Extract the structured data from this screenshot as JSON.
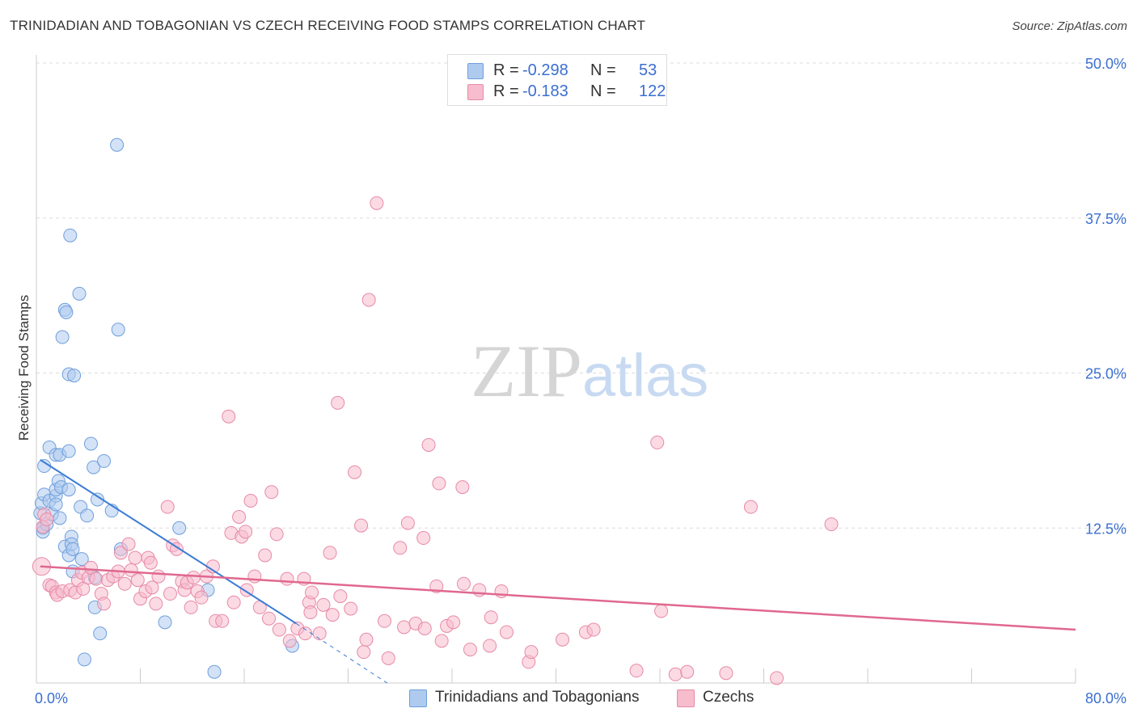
{
  "title": "TRINIDADIAN AND TOBAGONIAN VS CZECH RECEIVING FOOD STAMPS CORRELATION CHART",
  "source": "Source: ZipAtlas.com",
  "watermark": {
    "zip": "ZIP",
    "atlas": "atlas"
  },
  "legend": {
    "rows": [
      {
        "r_label": "R =",
        "r_value": "-0.298",
        "n_label": "N =",
        "n_value": "53"
      },
      {
        "r_label": "R =",
        "r_value": "-0.183",
        "n_label": "N =",
        "n_value": "122"
      }
    ]
  },
  "bottom_legend": [
    "Trinidadians and Tobagonians",
    "Czechs"
  ],
  "chart_data": {
    "type": "scatter",
    "title": "TRINIDADIAN AND TOBAGONIAN VS CZECH RECEIVING FOOD STAMPS CORRELATION CHART",
    "ylabel": "Receiving Food Stamps",
    "xlabel": "",
    "xlim": [
      0,
      80
    ],
    "ylim": [
      0,
      50
    ],
    "x_tick_labels": [
      "0.0%",
      "80.0%"
    ],
    "y_tick_labels": [
      "12.5%",
      "25.0%",
      "37.5%",
      "50.0%"
    ],
    "y_ticks": [
      12.5,
      25,
      37.5,
      50
    ],
    "grid": true,
    "legend_position": "top-center",
    "colors": {
      "series1_fill": "#aecbef",
      "series1_stroke": "#6f9fdc",
      "series1_line": "#3a7bd5",
      "series2_fill": "#f7bccd",
      "series2_stroke": "#e78aa7",
      "series2_line": "#e0688f",
      "tick_text": "#3b6fd0"
    },
    "series": [
      {
        "name": "Trinidadians and Tobagonians",
        "trend": {
          "x": [
            0.3,
            20
          ],
          "y": [
            18.0,
            4.8
          ],
          "dashed_to": [
            27,
            0
          ]
        },
        "points": [
          [
            0.3,
            13.7
          ],
          [
            0.4,
            14.5
          ],
          [
            0.5,
            12.5
          ],
          [
            0.5,
            12.2
          ],
          [
            0.6,
            15.2
          ],
          [
            0.6,
            17.5
          ],
          [
            0.8,
            12.8
          ],
          [
            1.0,
            19.0
          ],
          [
            1.0,
            14.7
          ],
          [
            1.2,
            13.6
          ],
          [
            1.5,
            15.1
          ],
          [
            1.5,
            15.6
          ],
          [
            1.5,
            14.4
          ],
          [
            1.5,
            18.4
          ],
          [
            1.7,
            16.3
          ],
          [
            1.8,
            18.4
          ],
          [
            1.8,
            13.3
          ],
          [
            1.9,
            15.8
          ],
          [
            2.0,
            27.9
          ],
          [
            2.2,
            11.0
          ],
          [
            2.2,
            30.1
          ],
          [
            2.3,
            29.9
          ],
          [
            2.5,
            15.6
          ],
          [
            2.5,
            18.7
          ],
          [
            2.5,
            24.9
          ],
          [
            2.5,
            10.3
          ],
          [
            2.6,
            36.1
          ],
          [
            2.7,
            11.8
          ],
          [
            2.7,
            11.2
          ],
          [
            2.8,
            10.8
          ],
          [
            2.8,
            9.0
          ],
          [
            2.9,
            24.8
          ],
          [
            3.3,
            31.4
          ],
          [
            3.4,
            14.2
          ],
          [
            3.5,
            10.0
          ],
          [
            3.7,
            1.9
          ],
          [
            3.9,
            13.5
          ],
          [
            4.2,
            19.3
          ],
          [
            4.4,
            17.4
          ],
          [
            4.5,
            8.5
          ],
          [
            4.5,
            6.1
          ],
          [
            4.7,
            14.8
          ],
          [
            4.9,
            4.0
          ],
          [
            5.2,
            17.9
          ],
          [
            5.8,
            13.9
          ],
          [
            6.2,
            43.4
          ],
          [
            6.3,
            28.5
          ],
          [
            6.5,
            10.8
          ],
          [
            9.9,
            4.9
          ],
          [
            11.0,
            12.5
          ],
          [
            13.2,
            7.5
          ],
          [
            13.7,
            0.9
          ],
          [
            19.7,
            3.0
          ]
        ]
      },
      {
        "name": "Czechs",
        "trend": {
          "x": [
            0.3,
            80
          ],
          "y": [
            9.4,
            4.3
          ]
        },
        "points": [
          [
            0.4,
            9.4
          ],
          [
            0.5,
            12.6
          ],
          [
            0.6,
            13.6
          ],
          [
            0.8,
            13.2
          ],
          [
            1.0,
            7.9
          ],
          [
            1.2,
            7.8
          ],
          [
            1.5,
            7.3
          ],
          [
            1.6,
            7.1
          ],
          [
            2.0,
            7.4
          ],
          [
            2.6,
            7.5
          ],
          [
            3.0,
            7.3
          ],
          [
            3.2,
            8.3
          ],
          [
            3.5,
            8.9
          ],
          [
            3.6,
            7.6
          ],
          [
            4.0,
            8.5
          ],
          [
            4.2,
            9.3
          ],
          [
            4.6,
            8.4
          ],
          [
            5.0,
            7.2
          ],
          [
            5.2,
            6.4
          ],
          [
            5.5,
            8.3
          ],
          [
            5.9,
            8.6
          ],
          [
            6.3,
            9.0
          ],
          [
            6.5,
            10.5
          ],
          [
            6.8,
            8.0
          ],
          [
            7.1,
            11.2
          ],
          [
            7.3,
            9.1
          ],
          [
            7.6,
            10.1
          ],
          [
            7.8,
            8.3
          ],
          [
            8.0,
            6.8
          ],
          [
            8.4,
            7.4
          ],
          [
            8.6,
            10.1
          ],
          [
            8.8,
            9.7
          ],
          [
            8.9,
            7.7
          ],
          [
            9.2,
            6.4
          ],
          [
            9.4,
            8.6
          ],
          [
            10.1,
            14.2
          ],
          [
            10.3,
            7.2
          ],
          [
            10.5,
            11.1
          ],
          [
            10.8,
            10.8
          ],
          [
            11.2,
            8.2
          ],
          [
            11.4,
            7.5
          ],
          [
            11.6,
            8.1
          ],
          [
            11.9,
            6.1
          ],
          [
            12.1,
            8.5
          ],
          [
            12.4,
            7.4
          ],
          [
            12.7,
            6.9
          ],
          [
            13.1,
            8.6
          ],
          [
            13.6,
            9.4
          ],
          [
            13.8,
            5.0
          ],
          [
            14.3,
            5.0
          ],
          [
            14.8,
            21.5
          ],
          [
            15.0,
            12.1
          ],
          [
            15.2,
            6.5
          ],
          [
            15.6,
            13.4
          ],
          [
            15.8,
            11.8
          ],
          [
            16.1,
            12.2
          ],
          [
            16.2,
            7.5
          ],
          [
            16.5,
            14.7
          ],
          [
            16.8,
            8.6
          ],
          [
            17.2,
            6.1
          ],
          [
            17.6,
            10.3
          ],
          [
            17.9,
            5.2
          ],
          [
            18.1,
            15.4
          ],
          [
            18.5,
            12.0
          ],
          [
            18.7,
            4.3
          ],
          [
            19.3,
            8.4
          ],
          [
            19.5,
            3.4
          ],
          [
            20.1,
            4.4
          ],
          [
            20.6,
            8.4
          ],
          [
            20.7,
            4.0
          ],
          [
            21.0,
            6.5
          ],
          [
            21.1,
            5.7
          ],
          [
            21.2,
            7.3
          ],
          [
            21.8,
            4.0
          ],
          [
            22.1,
            6.3
          ],
          [
            22.6,
            10.5
          ],
          [
            22.8,
            5.5
          ],
          [
            23.2,
            22.6
          ],
          [
            23.4,
            7.0
          ],
          [
            24.2,
            6.0
          ],
          [
            24.5,
            17.0
          ],
          [
            25.0,
            12.7
          ],
          [
            25.2,
            2.5
          ],
          [
            25.4,
            3.5
          ],
          [
            25.6,
            30.9
          ],
          [
            26.2,
            38.7
          ],
          [
            26.8,
            5.0
          ],
          [
            27.1,
            2.0
          ],
          [
            28.0,
            10.9
          ],
          [
            28.3,
            4.5
          ],
          [
            28.6,
            12.9
          ],
          [
            29.2,
            4.8
          ],
          [
            29.8,
            11.7
          ],
          [
            29.9,
            4.4
          ],
          [
            30.2,
            19.2
          ],
          [
            30.8,
            7.8
          ],
          [
            31.0,
            16.1
          ],
          [
            31.2,
            3.4
          ],
          [
            31.6,
            4.6
          ],
          [
            32.1,
            4.9
          ],
          [
            32.8,
            15.8
          ],
          [
            32.9,
            8.0
          ],
          [
            33.4,
            2.7
          ],
          [
            34.1,
            7.5
          ],
          [
            34.9,
            3.0
          ],
          [
            35.0,
            5.3
          ],
          [
            35.8,
            7.4
          ],
          [
            36.2,
            4.1
          ],
          [
            37.9,
            1.7
          ],
          [
            38.1,
            2.5
          ],
          [
            40.5,
            3.5
          ],
          [
            42.3,
            4.1
          ],
          [
            42.9,
            4.3
          ],
          [
            46.2,
            1.0
          ],
          [
            48.1,
            5.8
          ],
          [
            47.8,
            19.4
          ],
          [
            49.2,
            0.7
          ],
          [
            50.1,
            0.9
          ],
          [
            53.1,
            0.8
          ],
          [
            55.0,
            14.2
          ],
          [
            57.0,
            0.4
          ],
          [
            61.2,
            12.8
          ]
        ]
      }
    ]
  }
}
